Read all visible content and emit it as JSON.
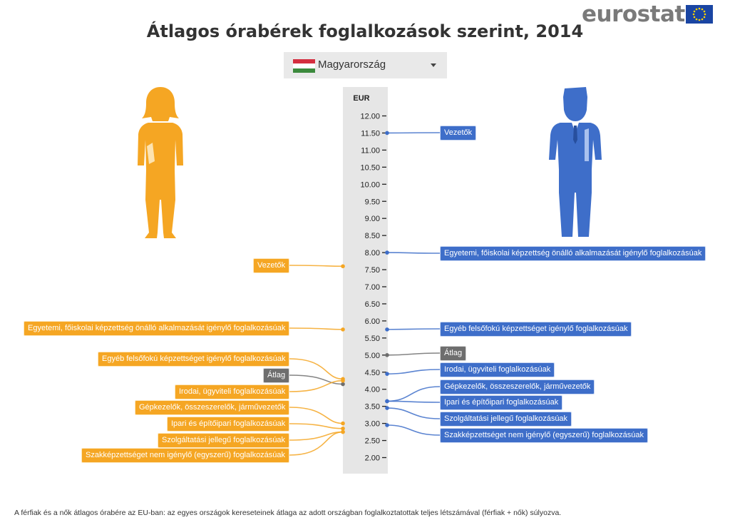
{
  "logo": {
    "text": "eurostat"
  },
  "title": "Átlagos órabérek foglalkozások szerint, 2014",
  "selector": {
    "value": "Magyarország",
    "flag_colors": [
      "#d42e3f",
      "#ffffff",
      "#3c8a3d"
    ]
  },
  "colors": {
    "women": "#f5a623",
    "men": "#3e6ec9",
    "average": "#6e6e6e",
    "axis_bg": "#e6e6e6"
  },
  "footnote": "A férfiak és a nők átlagos órabére az EU-ban: az egyes országok kereseteinek átlaga az adott országban foglalkoztatottak teljes létszámával (férfiak + nők) súlyozva.",
  "chart_data": {
    "type": "scatter",
    "unit": "EUR",
    "ylim": [
      2.0,
      12.0
    ],
    "ticks": [
      "12.00",
      "11.50",
      "11.00",
      "10.50",
      "10.00",
      "9.50",
      "9.00",
      "8.50",
      "8.00",
      "7.50",
      "7.00",
      "6.50",
      "6.00",
      "5.50",
      "5.00",
      "4.50",
      "4.00",
      "3.50",
      "3.00",
      "2.50",
      "2.00"
    ],
    "series": [
      {
        "side": "women",
        "points": [
          {
            "label": "Vezetők",
            "value": 7.6
          },
          {
            "label": "Egyetemi, főiskolai képzettség önálló alkalmazását igénylő foglalkozásúak",
            "value": 5.75
          },
          {
            "label": "Egyéb felsőfokú képzettséget igénylő foglalkozásúak",
            "value": 4.3
          },
          {
            "label": "Átlag",
            "value": 4.15
          },
          {
            "label": "Irodai, ügyviteli foglalkozásúak",
            "value": 4.25
          },
          {
            "label": "Gépkezelők, összeszerelők, járművezetők",
            "value": 3.0
          },
          {
            "label": "Ipari és építőipari foglalkozásúak",
            "value": 2.85
          },
          {
            "label": "Szolgáltatási jellegű foglalkozásúak",
            "value": 2.75
          },
          {
            "label": "Szakképzettséget nem igénylő (egyszerű) foglalkozásúak",
            "value": 2.75
          }
        ]
      },
      {
        "side": "men",
        "points": [
          {
            "label": "Vezetők",
            "value": 11.5
          },
          {
            "label": "Egyetemi, főiskolai képzettség önálló alkalmazását igénylő foglalkozásúak",
            "value": 8.0
          },
          {
            "label": "Egyéb felsőfokú képzettséget igénylő foglalkozásúak",
            "value": 5.75
          },
          {
            "label": "Átlag",
            "value": 5.0
          },
          {
            "label": "Irodai, ügyviteli foglalkozásúak",
            "value": 4.45
          },
          {
            "label": "Gépkezelők, összeszerelők, járművezetők",
            "value": 3.65
          },
          {
            "label": "Ipari és építőipari foglalkozásúak",
            "value": 3.65
          },
          {
            "label": "Szolgáltatási jellegű foglalkozásúak",
            "value": 3.45
          },
          {
            "label": "Szakképzettséget nem igénylő (egyszerű) foglalkozásúak",
            "value": 2.95
          }
        ]
      }
    ]
  }
}
